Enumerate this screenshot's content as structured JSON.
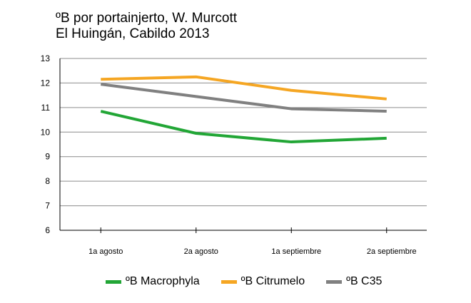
{
  "chart_data": {
    "type": "line",
    "title": "ºB por portainjerto, W. Murcott",
    "subtitle": "El Huingán, Cabildo 2013",
    "categories": [
      "1a agosto",
      "2a agosto",
      "1a septiembre",
      "2a septiembre"
    ],
    "yticks": [
      "6",
      "7",
      "8",
      "9",
      "10",
      "11",
      "12",
      "13"
    ],
    "ylim": [
      6,
      13
    ],
    "grid": true,
    "legend_position": "bottom",
    "series": [
      {
        "name": "ºB Macrophyla",
        "color": "#22a636",
        "values": [
          10.85,
          9.95,
          9.6,
          9.75
        ]
      },
      {
        "name": "ºB Citrumelo",
        "color": "#f5a623",
        "values": [
          12.15,
          12.25,
          11.7,
          11.35
        ]
      },
      {
        "name": "ºB C35",
        "color": "#808080",
        "values": [
          11.95,
          11.45,
          10.95,
          10.85
        ]
      }
    ]
  }
}
